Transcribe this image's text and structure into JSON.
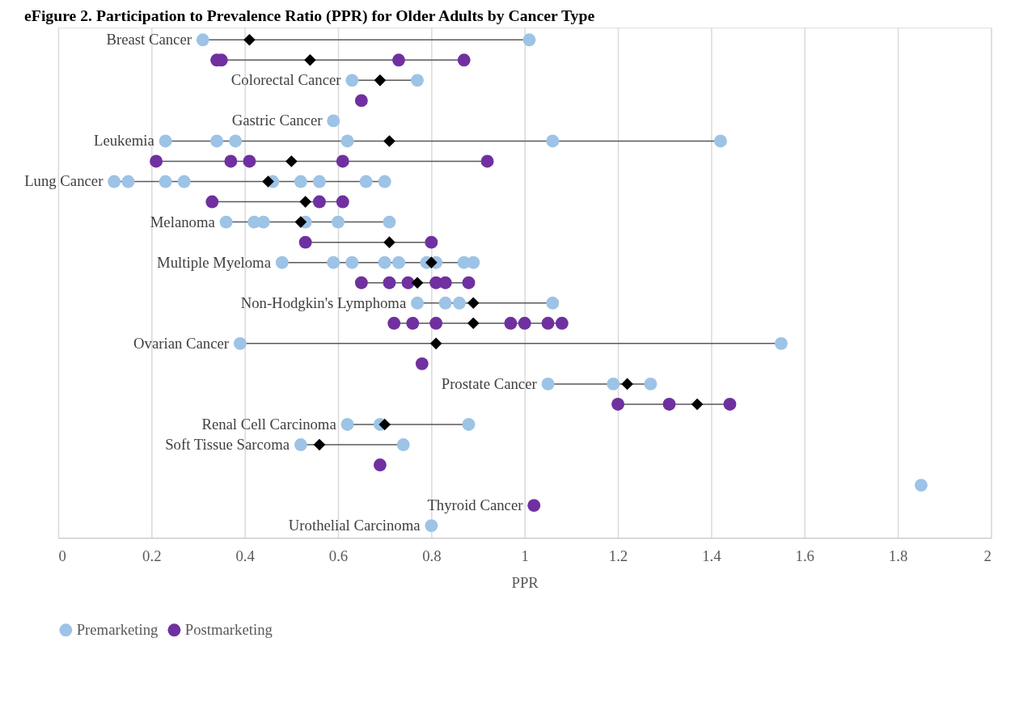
{
  "chart_data": {
    "type": "scatter",
    "orientation": "horizontal",
    "title": "eFigure 2. Participation to Prevalence Ratio (PPR) for Older Adults by Cancer Type",
    "xlabel": "PPR",
    "categories": [
      "Breast Cancer",
      null,
      "Colorectal Cancer",
      null,
      "Gastric Cancer",
      "Leukemia",
      null,
      "Lung Cancer",
      null,
      "Melanoma",
      null,
      "Multiple Myeloma",
      null,
      "Non-Hodgkin's Lymphoma",
      null,
      "Ovarian Cancer",
      null,
      "Prostate Cancer",
      null,
      "Renal Cell Carcinoma",
      "Soft Tissue Sarcoma",
      null,
      null,
      "Thyroid Cancer",
      "Urothelial Carcinoma"
    ],
    "xlim": [
      0,
      2
    ],
    "xticks": [
      0,
      0.2,
      0.4,
      0.6,
      0.8,
      1,
      1.2,
      1.4,
      1.6,
      1.8,
      2
    ],
    "grid": "x",
    "legend": "bottom",
    "series": [
      {
        "name": "Premarketing",
        "color": "#9dc3e6",
        "marker": "circle",
        "values": [
          0.31,
          null,
          0.63,
          null,
          0.59,
          0.23,
          null,
          0.12,
          null,
          0.36,
          null,
          0.48,
          null,
          0.77,
          null,
          0.39,
          null,
          1.05,
          null,
          0.62,
          0.52,
          null,
          1.85,
          null,
          0.8
        ]
      },
      {
        "color": "#9dc3e6",
        "marker": "circle",
        "values": [
          1.01,
          null,
          0.77,
          null,
          null,
          0.34,
          null,
          0.15,
          null,
          0.42,
          null,
          0.59,
          null,
          0.83,
          null,
          1.55,
          null,
          1.19,
          null,
          0.69,
          0.74,
          null,
          null,
          null,
          null
        ]
      },
      {
        "color": "#9dc3e6",
        "marker": "circle",
        "values": [
          null,
          null,
          null,
          null,
          null,
          0.38,
          null,
          0.23,
          null,
          0.44,
          null,
          0.63,
          null,
          0.86,
          null,
          null,
          null,
          1.27,
          null,
          0.88,
          null,
          null,
          null,
          null,
          null
        ]
      },
      {
        "color": "#9dc3e6",
        "marker": "circle",
        "values": [
          null,
          null,
          null,
          null,
          null,
          0.62,
          null,
          0.27,
          null,
          0.53,
          null,
          0.7,
          null,
          1.06,
          null,
          null,
          null,
          null,
          null,
          null,
          null,
          null,
          null,
          null,
          null
        ]
      },
      {
        "color": "#9dc3e6",
        "marker": "circle",
        "values": [
          null,
          null,
          null,
          null,
          null,
          1.06,
          null,
          0.46,
          null,
          0.6,
          null,
          0.73,
          null,
          null,
          null,
          null,
          null,
          null,
          null,
          null,
          null,
          null,
          null,
          null,
          null
        ]
      },
      {
        "color": "#9dc3e6",
        "marker": "circle",
        "values": [
          null,
          null,
          null,
          null,
          null,
          1.42,
          null,
          0.52,
          null,
          0.71,
          null,
          0.79,
          null,
          null,
          null,
          null,
          null,
          null,
          null,
          null,
          null,
          null,
          null,
          null,
          null
        ]
      },
      {
        "color": "#9dc3e6",
        "marker": "circle",
        "values": [
          null,
          null,
          null,
          null,
          null,
          null,
          null,
          0.56,
          null,
          null,
          null,
          0.81,
          null,
          null,
          null,
          null,
          null,
          null,
          null,
          null,
          null,
          null,
          null,
          null,
          null
        ]
      },
      {
        "color": "#9dc3e6",
        "marker": "circle",
        "values": [
          null,
          null,
          null,
          null,
          null,
          null,
          null,
          0.66,
          null,
          null,
          null,
          0.87,
          null,
          null,
          null,
          null,
          null,
          null,
          null,
          null,
          null,
          null,
          null,
          null,
          null
        ]
      },
      {
        "color": "#9dc3e6",
        "marker": "circle",
        "values": [
          null,
          null,
          null,
          null,
          null,
          null,
          null,
          0.7,
          null,
          null,
          null,
          0.89,
          null,
          null,
          null,
          null,
          null,
          null,
          null,
          null,
          null,
          null,
          null,
          null,
          null
        ]
      },
      {
        "name": "Postmarketing",
        "color": "#7030a0",
        "marker": "circle",
        "values": [
          null,
          0.34,
          null,
          0.65,
          null,
          null,
          0.21,
          null,
          0.33,
          null,
          0.53,
          null,
          0.65,
          null,
          0.72,
          null,
          0.78,
          null,
          1.2,
          null,
          null,
          0.69,
          null,
          1.02,
          null
        ]
      },
      {
        "color": "#7030a0",
        "marker": "circle",
        "values": [
          null,
          0.35,
          null,
          null,
          null,
          null,
          0.37,
          null,
          0.56,
          null,
          0.8,
          null,
          0.71,
          null,
          0.76,
          null,
          null,
          null,
          1.31,
          null,
          null,
          null,
          null,
          null,
          null
        ]
      },
      {
        "color": "#7030a0",
        "marker": "circle",
        "values": [
          null,
          0.73,
          null,
          null,
          null,
          null,
          0.41,
          null,
          0.61,
          null,
          null,
          null,
          0.75,
          null,
          0.81,
          null,
          null,
          null,
          1.44,
          null,
          null,
          null,
          null,
          null,
          null
        ]
      },
      {
        "color": "#7030a0",
        "marker": "circle",
        "values": [
          null,
          0.87,
          null,
          null,
          null,
          null,
          0.61,
          null,
          null,
          null,
          null,
          null,
          0.81,
          null,
          0.97,
          null,
          null,
          null,
          null,
          null,
          null,
          null,
          null,
          null,
          null
        ]
      },
      {
        "color": "#7030a0",
        "marker": "circle",
        "values": [
          null,
          null,
          null,
          null,
          null,
          null,
          0.92,
          null,
          null,
          null,
          null,
          null,
          0.83,
          null,
          1,
          null,
          null,
          null,
          null,
          null,
          null,
          null,
          null,
          null,
          null
        ]
      },
      {
        "color": "#7030a0",
        "marker": "circle",
        "values": [
          null,
          null,
          null,
          null,
          null,
          null,
          null,
          null,
          null,
          null,
          null,
          null,
          0.88,
          null,
          1.05,
          null,
          null,
          null,
          null,
          null,
          null,
          null,
          null,
          null,
          null
        ]
      },
      {
        "color": "#7030a0",
        "marker": "circle",
        "values": [
          null,
          null,
          null,
          null,
          null,
          null,
          null,
          null,
          null,
          null,
          null,
          null,
          null,
          null,
          1.08,
          null,
          null,
          null,
          null,
          null,
          null,
          null,
          null,
          null,
          null
        ]
      },
      {
        "color": "#000000",
        "marker": "diamond",
        "values": [
          0.41,
          0.54,
          0.69,
          null,
          null,
          0.71,
          0.5,
          0.45,
          0.53,
          0.52,
          0.71,
          0.8,
          0.77,
          0.89,
          0.89,
          0.81,
          null,
          1.22,
          1.37,
          0.7,
          0.56,
          null,
          null,
          null,
          null
        ]
      }
    ]
  }
}
